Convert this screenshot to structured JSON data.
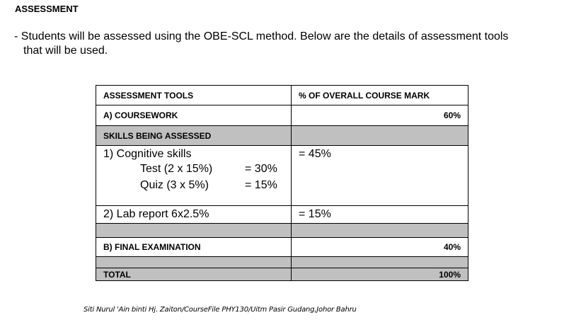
{
  "header": {
    "title": "ASSESSMENT"
  },
  "intro": {
    "lines": [
      "- Students will be assessed using the OBE-SCL method. Below are the details of assessment tools",
      "that will be used."
    ]
  },
  "table": {
    "columns": [
      "ASSESSMENT TOOLS",
      "% OF OVERALL COURSE MARK"
    ],
    "coursework": {
      "label": "A) COURSEWORK",
      "value": "60%"
    },
    "skills_heading": "SKILLS BEING ASSESSED",
    "cognitive": {
      "label": "1) Cognitive skills",
      "value": "= 45%",
      "items": [
        {
          "label": "Test (2 x 15%)",
          "value": "= 30%"
        },
        {
          "label": "Quiz (3 x 5%)",
          "value": "= 15%"
        }
      ]
    },
    "lab": {
      "label": "2) Lab report 6x2.5%",
      "value": "= 15%"
    },
    "final": {
      "label": "B) FINAL EXAMINATION",
      "value": "40%"
    },
    "total": {
      "label": "TOTAL",
      "value": "100%"
    }
  },
  "footer": "Siti Nurul 'Ain binti Hj. Zaiton/CourseFile PHY130/Uitm Pasir Gudang,Johor Bahru"
}
